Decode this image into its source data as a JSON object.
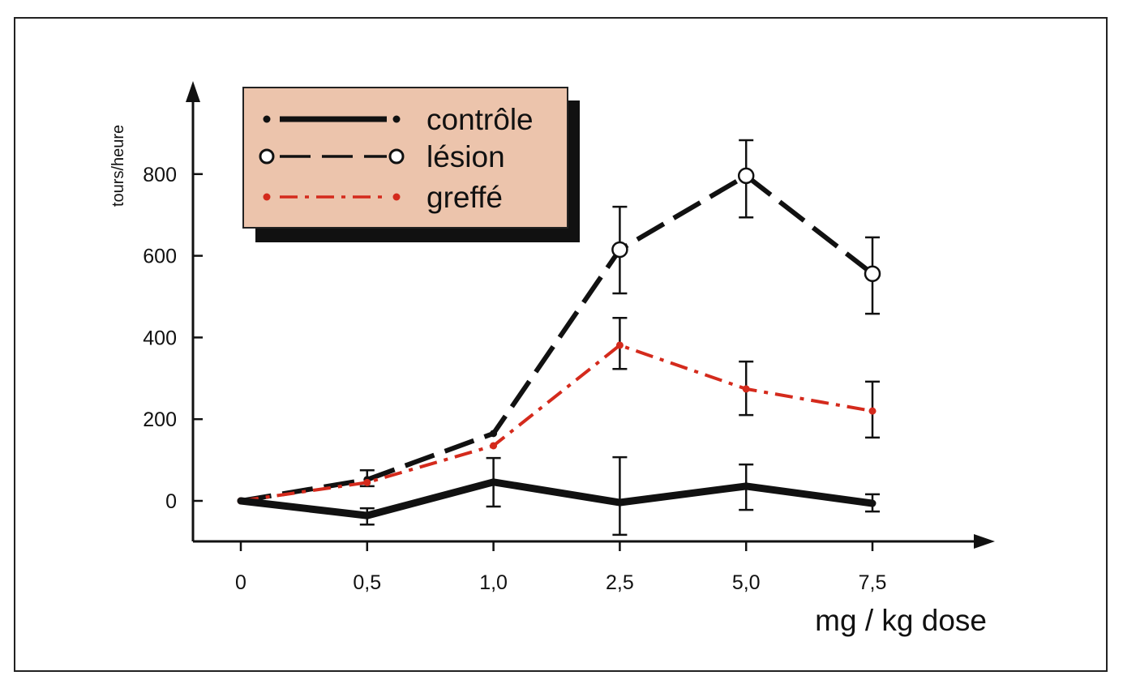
{
  "chart_data": {
    "type": "line",
    "title": "",
    "xlabel": "mg / kg dose",
    "ylabel": "tours/heure",
    "categories": [
      "0",
      "0,5",
      "1,0",
      "2,5",
      "5,0",
      "7,5"
    ],
    "yticks": [
      0,
      200,
      400,
      600,
      800
    ],
    "ylim": [
      -100,
      1000
    ],
    "grid": false,
    "legend_position": "top-left",
    "series": [
      {
        "name": "contrôle",
        "style": "solid-thick",
        "color": "#111111",
        "values": [
          0,
          -36,
          46,
          -4,
          36,
          -6
        ],
        "err_low": [
          null,
          -58,
          -14,
          -83,
          -22,
          -26
        ],
        "err_high": [
          null,
          -18,
          105,
          107,
          89,
          16
        ]
      },
      {
        "name": "lésion",
        "style": "dashed-open-circle",
        "color": "#111111",
        "values": [
          0,
          52,
          165,
          615,
          796,
          556
        ],
        "err_low": [
          null,
          36,
          null,
          508,
          694,
          458
        ],
        "err_high": [
          null,
          75,
          null,
          720,
          883,
          645
        ]
      },
      {
        "name": "greffé",
        "style": "dash-dot",
        "color": "#d42a1c",
        "values": [
          0,
          45,
          135,
          381,
          274,
          220
        ],
        "err_low": [
          null,
          null,
          null,
          323,
          210,
          155
        ],
        "err_high": [
          null,
          null,
          null,
          448,
          341,
          292
        ]
      }
    ],
    "legend_bg": "#ecc4ac"
  }
}
